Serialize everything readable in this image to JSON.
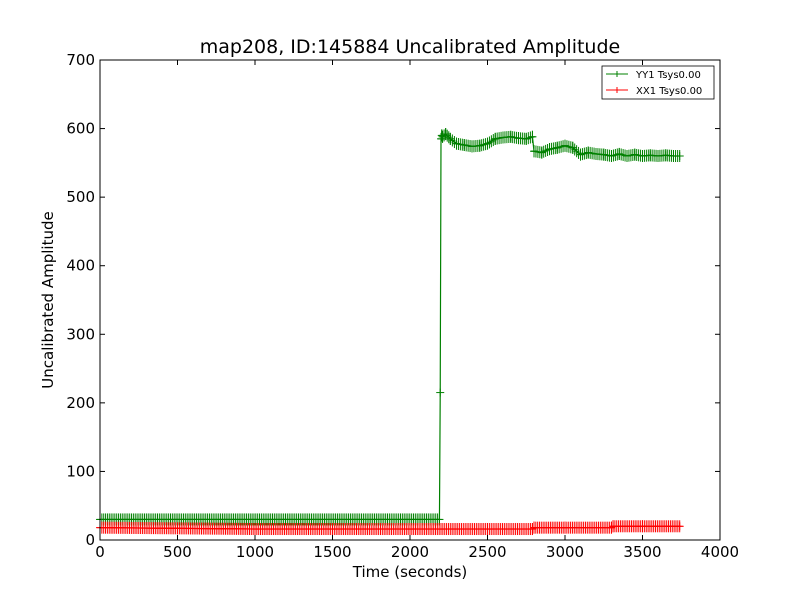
{
  "chart_data": {
    "type": "line",
    "title": "map208, ID:145884 Uncalibrated Amplitude",
    "xlabel": "Time (seconds)",
    "ylabel": "Uncalibrated Amplitude",
    "xlim": [
      0,
      4000
    ],
    "ylim": [
      0,
      700
    ],
    "xticks": [
      0,
      500,
      1000,
      1500,
      2000,
      2500,
      3000,
      3500,
      4000
    ],
    "yticks": [
      0,
      100,
      200,
      300,
      400,
      500,
      600,
      700
    ],
    "grid": false,
    "legend_position": "top-right",
    "series": [
      {
        "name": "YY1 Tsys0.00",
        "color": "#008000",
        "marker": "+",
        "x": [
          0,
          2190,
          2195,
          2200,
          2205,
          2210,
          2230,
          2260,
          2300,
          2350,
          2400,
          2450,
          2500,
          2550,
          2600,
          2650,
          2700,
          2750,
          2790,
          2800,
          2850,
          2900,
          2950,
          3000,
          3050,
          3100,
          3150,
          3200,
          3250,
          3300,
          3350,
          3400,
          3450,
          3500,
          3550,
          3600,
          3650,
          3700,
          3740
        ],
        "y": [
          30,
          30,
          215,
          585,
          590,
          588,
          592,
          585,
          578,
          576,
          574,
          575,
          578,
          585,
          587,
          588,
          586,
          585,
          588,
          567,
          565,
          570,
          572,
          575,
          572,
          562,
          565,
          563,
          562,
          560,
          563,
          560,
          562,
          560,
          561,
          560,
          561,
          560,
          560
        ]
      },
      {
        "name": "XX1 Tsys0.00",
        "color": "#ff0000",
        "marker": "+",
        "x": [
          0,
          500,
          1000,
          1500,
          2000,
          2200,
          2500,
          2790,
          2800,
          3000,
          3300,
          3310,
          3500,
          3740
        ],
        "y": [
          18,
          17,
          16,
          16,
          16,
          16,
          16,
          16,
          18,
          18,
          18,
          20,
          20,
          20
        ]
      }
    ]
  }
}
